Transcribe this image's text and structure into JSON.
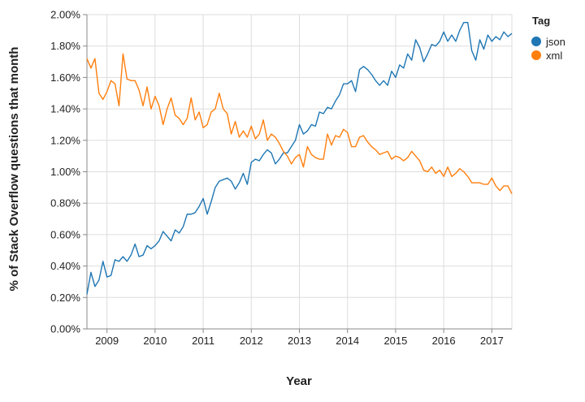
{
  "chart_data": {
    "type": "line",
    "xlabel": "Year",
    "ylabel": "% of Stack Overflow questions that month",
    "x_ticks": [
      "2009",
      "2010",
      "2011",
      "2012",
      "2013",
      "2014",
      "2015",
      "2016",
      "2017"
    ],
    "y_ticks": [
      "0.00%",
      "0.20%",
      "0.40%",
      "0.60%",
      "0.80%",
      "1.00%",
      "1.20%",
      "1.40%",
      "1.60%",
      "1.80%",
      "2.00%"
    ],
    "xlim": [
      "2008-08",
      "2017-06"
    ],
    "ylim": [
      0,
      2.0
    ],
    "grid": true,
    "legend": {
      "title": "Tag",
      "position": "top-right"
    },
    "series": [
      {
        "name": "json",
        "color": "#1f77b4",
        "x": [
          "2008-08",
          "2008-09",
          "2008-10",
          "2008-11",
          "2008-12",
          "2009-01",
          "2009-02",
          "2009-03",
          "2009-04",
          "2009-05",
          "2009-06",
          "2009-07",
          "2009-08",
          "2009-09",
          "2009-10",
          "2009-11",
          "2009-12",
          "2010-01",
          "2010-02",
          "2010-03",
          "2010-04",
          "2010-05",
          "2010-06",
          "2010-07",
          "2010-08",
          "2010-09",
          "2010-10",
          "2010-11",
          "2010-12",
          "2011-01",
          "2011-02",
          "2011-03",
          "2011-04",
          "2011-05",
          "2011-06",
          "2011-07",
          "2011-08",
          "2011-09",
          "2011-10",
          "2011-11",
          "2011-12",
          "2012-01",
          "2012-02",
          "2012-03",
          "2012-04",
          "2012-05",
          "2012-06",
          "2012-07",
          "2012-08",
          "2012-09",
          "2012-10",
          "2012-11",
          "2012-12",
          "2013-01",
          "2013-02",
          "2013-03",
          "2013-04",
          "2013-05",
          "2013-06",
          "2013-07",
          "2013-08",
          "2013-09",
          "2013-10",
          "2013-11",
          "2013-12",
          "2014-01",
          "2014-02",
          "2014-03",
          "2014-04",
          "2014-05",
          "2014-06",
          "2014-07",
          "2014-08",
          "2014-09",
          "2014-10",
          "2014-11",
          "2014-12",
          "2015-01",
          "2015-02",
          "2015-03",
          "2015-04",
          "2015-05",
          "2015-06",
          "2015-07",
          "2015-08",
          "2015-09",
          "2015-10",
          "2015-11",
          "2015-12",
          "2016-01",
          "2016-02",
          "2016-03",
          "2016-04",
          "2016-05",
          "2016-06",
          "2016-07",
          "2016-08",
          "2016-09",
          "2016-10",
          "2016-11",
          "2016-12",
          "2017-01",
          "2017-02",
          "2017-03",
          "2017-04",
          "2017-05",
          "2017-06"
        ],
        "y": [
          0.22,
          0.36,
          0.27,
          0.31,
          0.43,
          0.33,
          0.34,
          0.44,
          0.43,
          0.46,
          0.43,
          0.47,
          0.54,
          0.46,
          0.47,
          0.53,
          0.51,
          0.53,
          0.56,
          0.62,
          0.59,
          0.56,
          0.63,
          0.61,
          0.65,
          0.73,
          0.73,
          0.74,
          0.78,
          0.83,
          0.73,
          0.81,
          0.9,
          0.94,
          0.95,
          0.96,
          0.94,
          0.89,
          0.93,
          0.99,
          0.92,
          1.06,
          1.08,
          1.07,
          1.11,
          1.14,
          1.12,
          1.05,
          1.08,
          1.12,
          1.12,
          1.16,
          1.2,
          1.3,
          1.24,
          1.26,
          1.3,
          1.29,
          1.38,
          1.37,
          1.41,
          1.4,
          1.45,
          1.49,
          1.56,
          1.56,
          1.58,
          1.51,
          1.65,
          1.67,
          1.65,
          1.62,
          1.58,
          1.55,
          1.58,
          1.55,
          1.64,
          1.6,
          1.68,
          1.66,
          1.75,
          1.71,
          1.84,
          1.79,
          1.7,
          1.75,
          1.81,
          1.8,
          1.83,
          1.89,
          1.83,
          1.87,
          1.83,
          1.9,
          1.95,
          1.95,
          1.77,
          1.71,
          1.84,
          1.78,
          1.87,
          1.83,
          1.86,
          1.84,
          1.89,
          1.86,
          1.88
        ]
      },
      {
        "name": "xml",
        "color": "#ff7f0e",
        "x": [
          "2008-08",
          "2008-09",
          "2008-10",
          "2008-11",
          "2008-12",
          "2009-01",
          "2009-02",
          "2009-03",
          "2009-04",
          "2009-05",
          "2009-06",
          "2009-07",
          "2009-08",
          "2009-09",
          "2009-10",
          "2009-11",
          "2009-12",
          "2010-01",
          "2010-02",
          "2010-03",
          "2010-04",
          "2010-05",
          "2010-06",
          "2010-07",
          "2010-08",
          "2010-09",
          "2010-10",
          "2010-11",
          "2010-12",
          "2011-01",
          "2011-02",
          "2011-03",
          "2011-04",
          "2011-05",
          "2011-06",
          "2011-07",
          "2011-08",
          "2011-09",
          "2011-10",
          "2011-11",
          "2011-12",
          "2012-01",
          "2012-02",
          "2012-03",
          "2012-04",
          "2012-05",
          "2012-06",
          "2012-07",
          "2012-08",
          "2012-09",
          "2012-10",
          "2012-11",
          "2012-12",
          "2013-01",
          "2013-02",
          "2013-03",
          "2013-04",
          "2013-05",
          "2013-06",
          "2013-07",
          "2013-08",
          "2013-09",
          "2013-10",
          "2013-11",
          "2013-12",
          "2014-01",
          "2014-02",
          "2014-03",
          "2014-04",
          "2014-05",
          "2014-06",
          "2014-07",
          "2014-08",
          "2014-09",
          "2014-10",
          "2014-11",
          "2014-12",
          "2015-01",
          "2015-02",
          "2015-03",
          "2015-04",
          "2015-05",
          "2015-06",
          "2015-07",
          "2015-08",
          "2015-09",
          "2015-10",
          "2015-11",
          "2015-12",
          "2016-01",
          "2016-02",
          "2016-03",
          "2016-04",
          "2016-05",
          "2016-06",
          "2016-07",
          "2016-08",
          "2016-09",
          "2016-10",
          "2016-11",
          "2016-12",
          "2017-01",
          "2017-02",
          "2017-03",
          "2017-04",
          "2017-05",
          "2017-06"
        ],
        "y": [
          1.72,
          1.66,
          1.72,
          1.5,
          1.46,
          1.51,
          1.58,
          1.56,
          1.42,
          1.75,
          1.59,
          1.58,
          1.58,
          1.52,
          1.42,
          1.54,
          1.4,
          1.48,
          1.42,
          1.3,
          1.4,
          1.47,
          1.36,
          1.34,
          1.3,
          1.34,
          1.47,
          1.33,
          1.38,
          1.28,
          1.3,
          1.38,
          1.4,
          1.5,
          1.4,
          1.37,
          1.24,
          1.32,
          1.22,
          1.26,
          1.22,
          1.29,
          1.21,
          1.24,
          1.33,
          1.2,
          1.24,
          1.22,
          1.18,
          1.13,
          1.1,
          1.05,
          1.09,
          1.11,
          1.03,
          1.16,
          1.11,
          1.09,
          1.08,
          1.08,
          1.24,
          1.17,
          1.23,
          1.22,
          1.27,
          1.25,
          1.16,
          1.16,
          1.22,
          1.23,
          1.19,
          1.16,
          1.14,
          1.11,
          1.12,
          1.13,
          1.08,
          1.1,
          1.09,
          1.07,
          1.09,
          1.13,
          1.1,
          1.07,
          1.01,
          1.0,
          1.03,
          0.99,
          1.01,
          0.97,
          1.03,
          0.97,
          0.99,
          1.02,
          1.0,
          0.97,
          0.93,
          0.93,
          0.93,
          0.92,
          0.92,
          0.96,
          0.91,
          0.88,
          0.91,
          0.91,
          0.86
        ]
      }
    ]
  }
}
